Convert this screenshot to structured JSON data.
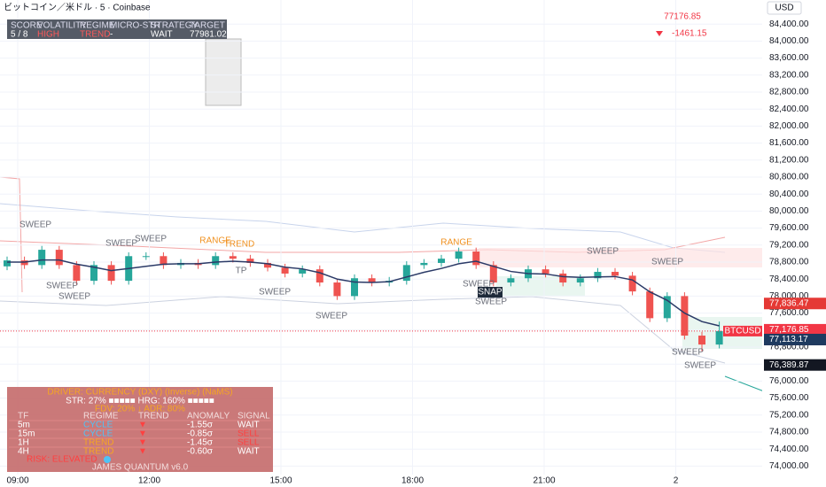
{
  "chart_data": {
    "type": "candlestick",
    "title": "ビットコイン／米ドル · 5 · Coinbase",
    "currency": "USD",
    "last_price": "77176.85",
    "change": "-1461.15",
    "stats_table": {
      "headers": [
        "SCORE",
        "VOLATILITY",
        "REGIME",
        "MICRO-STR",
        "STRATEGY",
        "TARGET"
      ],
      "row": [
        "5 / 8",
        "HIGH",
        "TREND",
        "-",
        "WAIT",
        "77981.02"
      ]
    },
    "ylim": [
      73800,
      84800
    ],
    "yticks": [
      {
        "value": 74000,
        "label": "74,000.00"
      },
      {
        "value": 74400,
        "label": "74,400.00"
      },
      {
        "value": 74800,
        "label": "74,800.00"
      },
      {
        "value": 75200,
        "label": "75,200.00"
      },
      {
        "value": 75600,
        "label": "75,600.00"
      },
      {
        "value": 76000,
        "label": "76,000.00"
      },
      {
        "value": 76400,
        "label": "76,400.00"
      },
      {
        "value": 76800,
        "label": "76,800.00"
      },
      {
        "value": 77200,
        "label": "77,200.00"
      },
      {
        "value": 77600,
        "label": "77,600.00"
      },
      {
        "value": 78000,
        "label": "78,000.00"
      },
      {
        "value": 78400,
        "label": "78,400.00"
      },
      {
        "value": 78800,
        "label": "78,800.00"
      },
      {
        "value": 79200,
        "label": "79,200.00"
      },
      {
        "value": 79600,
        "label": "79,600.00"
      },
      {
        "value": 80000,
        "label": "80,000.00"
      },
      {
        "value": 80400,
        "label": "80,400.00"
      },
      {
        "value": 80800,
        "label": "80,800.00"
      },
      {
        "value": 81200,
        "label": "81,200.00"
      },
      {
        "value": 81600,
        "label": "81,600.00"
      },
      {
        "value": 82000,
        "label": "82,000.00"
      },
      {
        "value": 82400,
        "label": "82,400.00"
      },
      {
        "value": 82800,
        "label": "82,800.00"
      },
      {
        "value": 83200,
        "label": "83,200.00"
      },
      {
        "value": 83600,
        "label": "83,600.00"
      },
      {
        "value": 84000,
        "label": "84,000.00"
      },
      {
        "value": 84400,
        "label": "84,400.00"
      }
    ],
    "time_labels": [
      "09:00",
      "12:00",
      "15:00",
      "18:00",
      "21:00",
      "2"
    ],
    "grid": true,
    "up_color": "#26a69a",
    "down_color": "#ef5350",
    "open": [
      78700,
      78840,
      78730,
      79090,
      78730,
      78360,
      78730,
      78360,
      78940,
      78940,
      78730,
      78780,
      78730,
      78940,
      78880,
      78780,
      78670,
      78530,
      78630,
      78320,
      78000,
      78420,
      78320,
      78360,
      78730,
      78780,
      78880,
      79050,
      78730,
      78320,
      78420,
      78630,
      78530,
      78320,
      78420,
      78570,
      78480,
      78110,
      77480,
      78000,
      77070,
      76860
    ],
    "close": [
      78840,
      78730,
      79090,
      78730,
      78360,
      78730,
      78360,
      78940,
      78940,
      78730,
      78780,
      78730,
      78940,
      78880,
      78780,
      78670,
      78530,
      78630,
      78320,
      78000,
      78420,
      78320,
      78360,
      78730,
      78780,
      78880,
      79050,
      78730,
      78320,
      78420,
      78630,
      78530,
      78320,
      78420,
      78570,
      78480,
      78110,
      77480,
      78000,
      77070,
      76860,
      77176.85
    ],
    "high": [
      78930,
      78930,
      79180,
      79180,
      78820,
      78820,
      78820,
      79030,
      79030,
      79030,
      78870,
      78870,
      79030,
      79030,
      78970,
      78870,
      78760,
      78720,
      78720,
      78410,
      78510,
      78510,
      78450,
      78820,
      78870,
      78970,
      79140,
      79140,
      78820,
      78510,
      78720,
      78720,
      78620,
      78510,
      78660,
      78660,
      78570,
      78200,
      78090,
      78090,
      77160,
      77400
    ],
    "low": [
      78610,
      78640,
      78640,
      78640,
      78270,
      78270,
      78270,
      78270,
      78850,
      78640,
      78640,
      78640,
      78640,
      78790,
      78690,
      78580,
      78440,
      78440,
      78230,
      77910,
      77910,
      78230,
      78230,
      78270,
      78640,
      78690,
      78790,
      78640,
      78230,
      78230,
      78330,
      78440,
      78230,
      78230,
      78330,
      78390,
      78020,
      77390,
      77390,
      76980,
      76700,
      76770
    ],
    "ma": {
      "color": "#2b3a67",
      "values": [
        78800,
        78800,
        78850,
        78850,
        78750,
        78680,
        78600,
        78650,
        78700,
        78750,
        78760,
        78760,
        78800,
        78820,
        78800,
        78760,
        78680,
        78640,
        78550,
        78400,
        78330,
        78320,
        78340,
        78450,
        78560,
        78650,
        78760,
        78820,
        78700,
        78580,
        78530,
        78520,
        78460,
        78440,
        78450,
        78460,
        78380,
        78100,
        77900,
        77600,
        77400,
        77300
      ]
    },
    "price_labels": [
      {
        "value": 77836.47,
        "label": "77,836.47",
        "color": "#e53935"
      },
      {
        "value": 77176.85,
        "label": "77,176.85",
        "color": "#f23645"
      },
      {
        "value": 77113.17,
        "label": "77,113.17",
        "color": "#1e3a5f"
      },
      {
        "value": 76389.87,
        "label": "76,389.87",
        "color": "#131722"
      }
    ],
    "countdown": "03:02",
    "symbol": "BTCUSD",
    "annotations": [
      "SWEEP",
      "SWEEP",
      "SWEEP",
      "SWEEP",
      "SWEEP",
      "SWEEP",
      "SWEEP",
      "RANGE",
      "TREND",
      "TP",
      "RANGE",
      "SNAP",
      "SWEEP",
      "SWEEP",
      "SWEEP",
      "SWEEP",
      "SWEEP",
      "SWEEP"
    ],
    "driver_panel": {
      "title": "DRIVER: CURRENCY (DXY) (Inverse) (NaMS)",
      "line1": "STR: 27% ■■■■■   HRG: 160% ■■■■■",
      "line2": "FDV: 20%  ↓  ADR: 80%",
      "headers": [
        "TF",
        "REGIME",
        "TREND",
        "ANOMALY",
        "SIGNAL"
      ],
      "rows": [
        [
          "5m",
          "CYCLE",
          "▼",
          "-1.55σ",
          "WAIT"
        ],
        [
          "15m",
          "CYCLE",
          "▼",
          "-0.85σ",
          "SELL"
        ],
        [
          "1H",
          "TREND",
          "▼",
          "-1.45σ",
          "SELL"
        ],
        [
          "4H",
          "TREND",
          "▼",
          "-0.60σ",
          "WAIT"
        ]
      ],
      "status": "RISK: ELEVATED",
      "footer": "JAMES QUANTUM v6.0"
    }
  }
}
